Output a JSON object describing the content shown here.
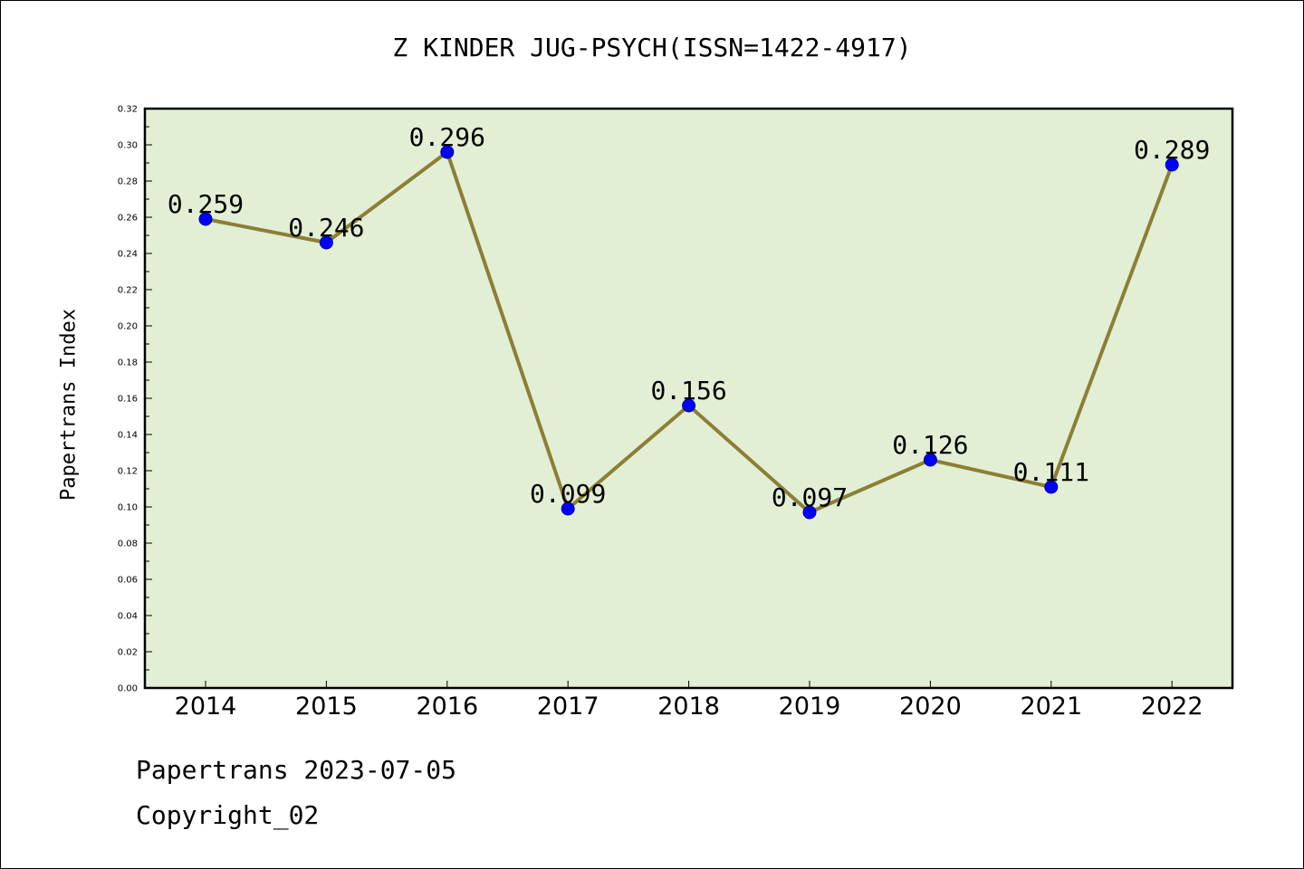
{
  "chart_data": {
    "type": "line",
    "title": "Z KINDER JUG-PSYCH(ISSN=1422-4917)",
    "xlabel": "",
    "ylabel": "Papertrans Index",
    "categories": [
      "2014",
      "2015",
      "2016",
      "2017",
      "2018",
      "2019",
      "2020",
      "2021",
      "2022"
    ],
    "series": [
      {
        "values": [
          0.259,
          0.246,
          0.296,
          0.099,
          0.156,
          0.097,
          0.126,
          0.111,
          0.289
        ],
        "labels": [
          "0.259",
          "0.246",
          "0.296",
          "0.099",
          "0.156",
          "0.097",
          "0.126",
          "0.111",
          "0.289"
        ]
      }
    ],
    "ylim": [
      0,
      0.32
    ],
    "yticks": [
      "0.00",
      "0.02",
      "0.04",
      "0.06",
      "0.08",
      "0.10",
      "0.12",
      "0.14",
      "0.16",
      "0.18",
      "0.20",
      "0.22",
      "0.24",
      "0.26",
      "0.28",
      "0.30",
      "0.32"
    ],
    "grid": false,
    "colors": {
      "plot_background": "#e2efd4",
      "line": "#8b7f35",
      "marker": "#0000ff"
    }
  },
  "footer": {
    "line1": "Papertrans 2023-07-05",
    "line2": "Copyright_02"
  }
}
